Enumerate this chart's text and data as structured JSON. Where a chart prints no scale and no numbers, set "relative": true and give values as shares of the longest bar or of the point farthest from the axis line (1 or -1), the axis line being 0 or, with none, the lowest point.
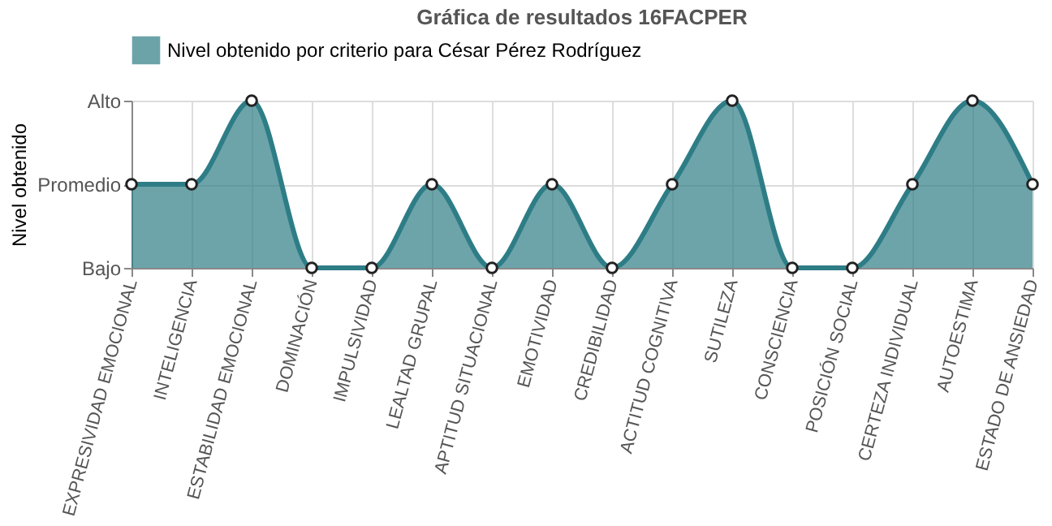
{
  "chart_data": {
    "type": "area",
    "title": "Gráfica de resultados 16FACPER",
    "ylabel": "Nivel obtenido",
    "categories": [
      "EXPRESIVIDAD EMOCIONAL",
      "INTELIGENCIA",
      "ESTABILIDAD EMOCIONAL",
      "DOMINACIÓN",
      "IMPULSIVIDAD",
      "LEALTAD GRUPAL",
      "APTITUD SITUACIONAL",
      "EMOTIVIDAD",
      "CREDIBILIDAD",
      "ACTITUD COGNITIVA",
      "SUTILEZA",
      "CONSCIENCIA",
      "POSICIÓN SOCIAL",
      "CERTEZA INDIVIDUAL",
      "AUTOESTIMA",
      "ESTADO DE ANSIEDAD"
    ],
    "series": [
      {
        "name": "Nivel obtenido por criterio para César Pérez Rodríguez",
        "color": "#2e7d86",
        "values": [
          0.5,
          0.5,
          1,
          0,
          0,
          0.5,
          0,
          0.5,
          0,
          0.5,
          1,
          0,
          0,
          0.5,
          1,
          0.5
        ]
      }
    ],
    "relative": true,
    "annotations": [
      "Bajo",
      "Promedio",
      "Alto"
    ],
    "grid": true,
    "legend": "top",
    "marker": "circle",
    "line_style": "solid"
  }
}
